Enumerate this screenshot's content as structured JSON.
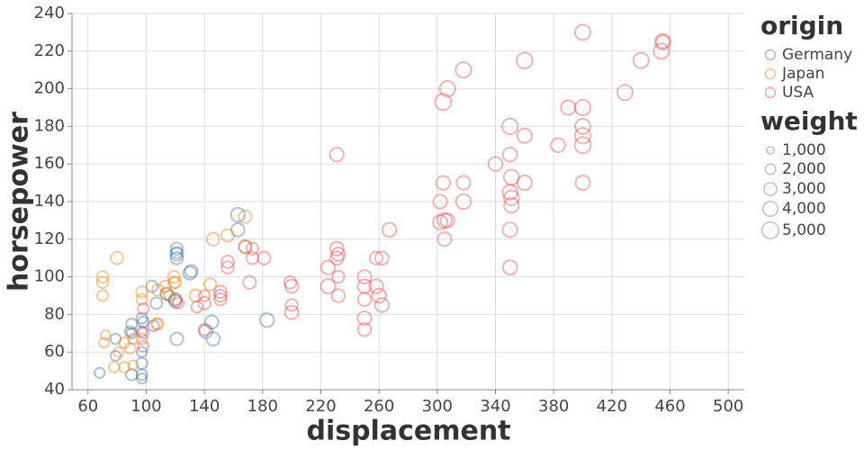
{
  "chart_data": {
    "type": "scatter",
    "x_label": "displacement",
    "y_label": "horsepower",
    "xlim": [
      49,
      511
    ],
    "ylim": [
      40,
      240
    ],
    "xticks": [
      60,
      100,
      140,
      180,
      220,
      260,
      300,
      340,
      380,
      420,
      460,
      500
    ],
    "yticks": [
      40,
      60,
      80,
      100,
      120,
      140,
      160,
      180,
      200,
      220,
      240
    ],
    "grid": true,
    "legend_position": "right",
    "color_legend_title": "origin",
    "size_legend_title": "weight",
    "size_legend_values": [
      {
        "value": 1000,
        "label": "1,000"
      },
      {
        "value": 2000,
        "label": "2,000"
      },
      {
        "value": 3000,
        "label": "3,000"
      },
      {
        "value": 4000,
        "label": "4,000"
      },
      {
        "value": 5000,
        "label": "5,000"
      }
    ],
    "series": [
      {
        "name": "Germany",
        "color": "#4c78a8",
        "x": [
          97,
          68,
          90,
          90,
          97,
          121,
          121,
          121,
          121,
          130,
          131,
          163,
          163,
          183,
          145,
          146,
          121,
          141,
          116,
          114,
          105,
          90,
          97,
          107,
          104,
          79,
          89,
          98,
          79,
          97,
          120,
          120,
          97,
          97
        ],
        "values": [
          46,
          49,
          48,
          70,
          60,
          113,
          112,
          115,
          110,
          102,
          103,
          133,
          125,
          77,
          76,
          67,
          67,
          71,
          90,
          91,
          74,
          75,
          78,
          86,
          95,
          67,
          71,
          76,
          58,
          54,
          88,
          87,
          71,
          48
        ],
        "sizes": [
          1835,
          1867,
          2335,
          1937,
          1834,
          2234,
          2933,
          2671,
          2800,
          3150,
          2830,
          3410,
          3140,
          3530,
          3160,
          3250,
          2950,
          3190,
          2123,
          2582,
          2190,
          2125,
          2188,
          2464,
          2375,
          1950,
          1925,
          2144,
          1825,
          2254,
          2957,
          2979,
          1825,
          2075
        ]
      },
      {
        "name": "Japan",
        "color": "#f58518",
        "x": [
          97,
          71,
          113,
          72,
          70,
          70,
          70,
          80,
          119,
          134,
          108,
          120,
          119,
          156,
          168,
          168,
          146,
          144,
          107,
          85,
          91,
          97,
          89,
          85,
          78,
          91,
          81,
          97,
          108,
          120,
          114
        ],
        "values": [
          88,
          65,
          95,
          69,
          97,
          90,
          100,
          110,
          97,
          90,
          75,
          88,
          100,
          122,
          132,
          116,
          120,
          96,
          75,
          65,
          67,
          67,
          62,
          52,
          52,
          53,
          60,
          92,
          93,
          97,
          91
        ],
        "sizes": [
          2130,
          1773,
          2372,
          1613,
          2330,
          2124,
          2420,
          2720,
          2300,
          2711,
          2265,
          2160,
          2615,
          2800,
          2910,
          2900,
          2930,
          2665,
          2205,
          2110,
          1965,
          2145,
          2050,
          2035,
          1985,
          1795,
          1760,
          2288,
          2391,
          2506,
          2582
        ]
      },
      {
        "name": "USA",
        "color": "#e45756",
        "x": [
          307,
          350,
          318,
          304,
          302,
          429,
          454,
          440,
          455,
          390,
          383,
          340,
          400,
          455,
          360,
          307,
          318,
          304,
          400,
          350,
          400,
          351,
          400,
          400,
          350,
          232,
          250,
          258,
          225,
          250,
          232,
          199,
          200,
          231,
          225,
          250,
          262,
          267,
          305,
          318,
          360,
          350,
          350,
          305,
          302,
          351,
          351,
          360,
          400,
          140,
          140,
          151,
          140,
          98,
          122,
          171,
          173,
          151,
          156,
          135,
          151,
          168,
          173,
          181,
          156,
          200,
          200,
          250,
          258,
          260,
          262,
          250,
          232,
          231,
          231,
          98,
          98
        ],
        "values": [
          130,
          165,
          150,
          150,
          140,
          198,
          220,
          215,
          225,
          190,
          170,
          160,
          150,
          225,
          215,
          200,
          210,
          193,
          230,
          180,
          175,
          153,
          170,
          190,
          145,
          100,
          100,
          110,
          105,
          88,
          90,
          97,
          85,
          165,
          95,
          72,
          110,
          125,
          130,
          140,
          175,
          125,
          105,
          120,
          129,
          138,
          142,
          150,
          180,
          90,
          72,
          88,
          86,
          70,
          86,
          97,
          115,
          90,
          105,
          84,
          92,
          116,
          110,
          110,
          108,
          95,
          81,
          95,
          95,
          90,
          85,
          78,
          112,
          115,
          110,
          83,
          63
        ],
        "sizes": [
          3504,
          3693,
          3436,
          3433,
          3449,
          4341,
          4354,
          4312,
          4425,
          3850,
          3563,
          3609,
          3761,
          3086,
          4615,
          4376,
          4382,
          4732,
          4278,
          4499,
          4464,
          4154,
          4746,
          4422,
          3988,
          2634,
          3329,
          2962,
          3439,
          3139,
          3085,
          2774,
          2587,
          3445,
          3785,
          3158,
          3221,
          3605,
          3840,
          4080,
          3830,
          3900,
          3725,
          3430,
          3725,
          3955,
          4054,
          3940,
          4220,
          2264,
          2408,
          2740,
          2790,
          2125,
          2220,
          2984,
          2595,
          2678,
          2745,
          2370,
          2865,
          2900,
          2700,
          3000,
          2800,
          3200,
          3300,
          3400,
          3500,
          3600,
          3500,
          3450,
          3250,
          3300,
          3200,
          2200,
          2100
        ]
      }
    ]
  }
}
